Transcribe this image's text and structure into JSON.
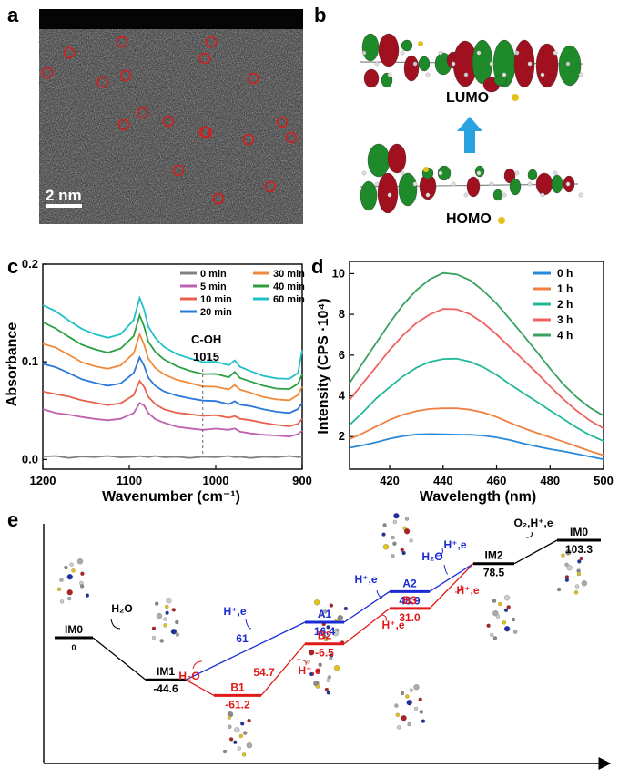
{
  "panels": {
    "a": {
      "letter": "a",
      "scale_bar": "2 nm",
      "marker_count": 21
    },
    "b": {
      "letter": "b",
      "lumo_label": "LUMO",
      "homo_label": "HOMO"
    }
  },
  "colors": {
    "bg": "#ffffff",
    "axis": "#000000",
    "marker": "#d02020",
    "arrow": "#29a3e0",
    "orbital_red": "#a0101e",
    "orbital_green": "#1e8a2a",
    "path_blue": "#1a2ad4",
    "path_red": "#e01818"
  },
  "chart_data": [
    {
      "id": "c",
      "letter": "c",
      "type": "line",
      "xlabel": "Wavenumber (cm⁻¹)",
      "ylabel": "Absorbance",
      "xlim": [
        1200,
        900
      ],
      "ylim": [
        -0.01,
        0.2
      ],
      "x_ticks": [
        1200,
        1100,
        1000,
        900
      ],
      "y_ticks": [
        0.0,
        0.1,
        0.2
      ],
      "y_tick_labels": [
        "0.0",
        "0.1",
        "0.2"
      ],
      "annotation": {
        "text1": "C-OH",
        "text2": "1015",
        "x": 1015
      },
      "x": [
        1200,
        1185,
        1170,
        1155,
        1140,
        1125,
        1110,
        1095,
        1088,
        1083,
        1078,
        1070,
        1060,
        1045,
        1030,
        1015,
        1000,
        985,
        978,
        972,
        960,
        945,
        930,
        915,
        905,
        900
      ],
      "series": [
        {
          "name": "0  min",
          "color": "#808080",
          "values": [
            0.003,
            0.004,
            0.002,
            0.003,
            0.002,
            0.003,
            0.002,
            0.003,
            0.004,
            0.003,
            0.002,
            0.003,
            0.002,
            0.003,
            0.002,
            0.003,
            0.002,
            0.003,
            0.002,
            0.003,
            0.002,
            0.003,
            0.002,
            0.003,
            0.002,
            0.003
          ]
        },
        {
          "name": "5  min",
          "color": "#c060b0",
          "values": [
            0.052,
            0.048,
            0.046,
            0.043,
            0.041,
            0.04,
            0.042,
            0.048,
            0.058,
            0.055,
            0.047,
            0.041,
            0.038,
            0.034,
            0.032,
            0.03,
            0.031,
            0.03,
            0.032,
            0.029,
            0.027,
            0.025,
            0.024,
            0.023,
            0.026,
            0.03
          ]
        },
        {
          "name": "10 min",
          "color": "#e8604a",
          "values": [
            0.07,
            0.067,
            0.064,
            0.06,
            0.058,
            0.056,
            0.058,
            0.066,
            0.08,
            0.074,
            0.064,
            0.057,
            0.052,
            0.048,
            0.046,
            0.044,
            0.045,
            0.043,
            0.045,
            0.042,
            0.04,
            0.037,
            0.035,
            0.034,
            0.037,
            0.042
          ]
        },
        {
          "name": "20 min",
          "color": "#2a78d8",
          "values": [
            0.098,
            0.094,
            0.088,
            0.082,
            0.079,
            0.076,
            0.078,
            0.088,
            0.104,
            0.096,
            0.084,
            0.076,
            0.07,
            0.065,
            0.062,
            0.06,
            0.06,
            0.057,
            0.06,
            0.056,
            0.054,
            0.051,
            0.049,
            0.048,
            0.052,
            0.058
          ]
        },
        {
          "name": "30 min",
          "color": "#f08a3c",
          "values": [
            0.118,
            0.114,
            0.107,
            0.1,
            0.096,
            0.093,
            0.096,
            0.108,
            0.128,
            0.118,
            0.104,
            0.094,
            0.087,
            0.081,
            0.078,
            0.075,
            0.075,
            0.072,
            0.076,
            0.071,
            0.068,
            0.064,
            0.062,
            0.061,
            0.066,
            0.074
          ]
        },
        {
          "name": "40 min",
          "color": "#2aa040",
          "values": [
            0.14,
            0.134,
            0.126,
            0.118,
            0.113,
            0.109,
            0.113,
            0.126,
            0.148,
            0.137,
            0.121,
            0.11,
            0.102,
            0.095,
            0.091,
            0.088,
            0.088,
            0.084,
            0.089,
            0.083,
            0.08,
            0.076,
            0.073,
            0.072,
            0.077,
            0.087
          ]
        },
        {
          "name": "60 min",
          "color": "#20c0c8",
          "values": [
            0.158,
            0.152,
            0.143,
            0.134,
            0.128,
            0.124,
            0.128,
            0.143,
            0.166,
            0.154,
            0.136,
            0.124,
            0.115,
            0.108,
            0.104,
            0.1,
            0.1,
            0.096,
            0.101,
            0.095,
            0.091,
            0.086,
            0.083,
            0.082,
            0.088,
            0.112
          ]
        }
      ]
    },
    {
      "id": "d",
      "letter": "d",
      "type": "line",
      "xlabel": "Wavelength (nm)",
      "ylabel": "Intensity (CPS ·10⁴)",
      "xlim": [
        405,
        500
      ],
      "ylim": [
        0.4,
        10.6
      ],
      "x_ticks": [
        420,
        440,
        460,
        480,
        500
      ],
      "y_ticks": [
        2,
        4,
        6,
        8,
        10
      ],
      "x": [
        405,
        410,
        415,
        420,
        425,
        430,
        435,
        440,
        445,
        450,
        455,
        460,
        465,
        470,
        475,
        480,
        485,
        490,
        495,
        500
      ],
      "series": [
        {
          "name": "0 h",
          "color": "#2a88d8",
          "values": [
            1.45,
            1.6,
            1.75,
            1.9,
            2.0,
            2.08,
            2.12,
            2.14,
            2.13,
            2.1,
            2.03,
            1.93,
            1.82,
            1.68,
            1.55,
            1.4,
            1.26,
            1.12,
            1.0,
            0.9
          ]
        },
        {
          "name": "1 h",
          "color": "#f08040",
          "values": [
            1.9,
            2.2,
            2.5,
            2.8,
            3.05,
            3.25,
            3.38,
            3.42,
            3.4,
            3.3,
            3.15,
            2.95,
            2.7,
            2.45,
            2.2,
            1.95,
            1.72,
            1.5,
            1.3,
            1.12
          ]
        },
        {
          "name": "2 h",
          "color": "#20b898",
          "values": [
            2.6,
            3.2,
            3.85,
            4.4,
            4.95,
            5.4,
            5.7,
            5.82,
            5.8,
            5.65,
            5.4,
            5.05,
            4.6,
            4.15,
            3.7,
            3.25,
            2.85,
            2.45,
            2.1,
            1.8
          ]
        },
        {
          "name": "3 h",
          "color": "#f06060",
          "values": [
            3.8,
            4.6,
            5.4,
            6.25,
            7.0,
            7.6,
            8.0,
            8.25,
            8.22,
            8.0,
            7.6,
            7.05,
            6.4,
            5.75,
            5.1,
            4.45,
            3.85,
            3.3,
            2.8,
            2.4
          ]
        },
        {
          "name": "4 h",
          "color": "#38a060",
          "values": [
            4.6,
            5.6,
            6.6,
            7.6,
            8.5,
            9.2,
            9.7,
            10.0,
            9.95,
            9.7,
            9.2,
            8.55,
            7.75,
            6.95,
            6.15,
            5.35,
            4.6,
            3.95,
            3.4,
            3.0
          ]
        }
      ]
    },
    {
      "id": "e",
      "letter": "e",
      "type": "energy_diagram",
      "levels": [
        {
          "name": "IM0",
          "value": 0,
          "value_text": "0",
          "path": "black"
        },
        {
          "name": "IM1",
          "value": -44.6,
          "value_text": "-44.6",
          "path": "black"
        },
        {
          "name": "B1",
          "value": -61.2,
          "value_text": "-61.2",
          "path": "red"
        },
        {
          "name": "A1",
          "value": 16.4,
          "value_text": "16.4",
          "path": "blue"
        },
        {
          "name": "B2",
          "value": -6.5,
          "value_text": "-6.5",
          "path": "red"
        },
        {
          "name": "A2",
          "value": 48.9,
          "value_text": "48.9",
          "path": "blue"
        },
        {
          "name": "B3",
          "value": 31.0,
          "value_text": "31.0",
          "path": "red"
        },
        {
          "name": "IM2",
          "value": 78.5,
          "value_text": "78.5",
          "path": "black"
        },
        {
          "name": "IM0",
          "value": 103.3,
          "value_text": "103.3",
          "path": "black"
        }
      ],
      "step_labels": [
        {
          "text": "H₂O",
          "path": "black"
        },
        {
          "text": "H₂O",
          "path": "red"
        },
        {
          "text": "H⁺,e",
          "path": "blue"
        },
        {
          "text": "61",
          "path": "blue"
        },
        {
          "text": "54.7",
          "path": "red"
        },
        {
          "text": "H⁺,e",
          "path": "red"
        },
        {
          "text": "H⁺,e",
          "path": "blue"
        },
        {
          "text": "H⁺,e",
          "path": "red"
        },
        {
          "text": "H₂O",
          "path": "blue"
        },
        {
          "text": "H⁺,e",
          "path": "blue"
        },
        {
          "text": "H⁺,e",
          "path": "red"
        },
        {
          "text": "O₂,H⁺,e",
          "path": "black"
        }
      ]
    }
  ]
}
